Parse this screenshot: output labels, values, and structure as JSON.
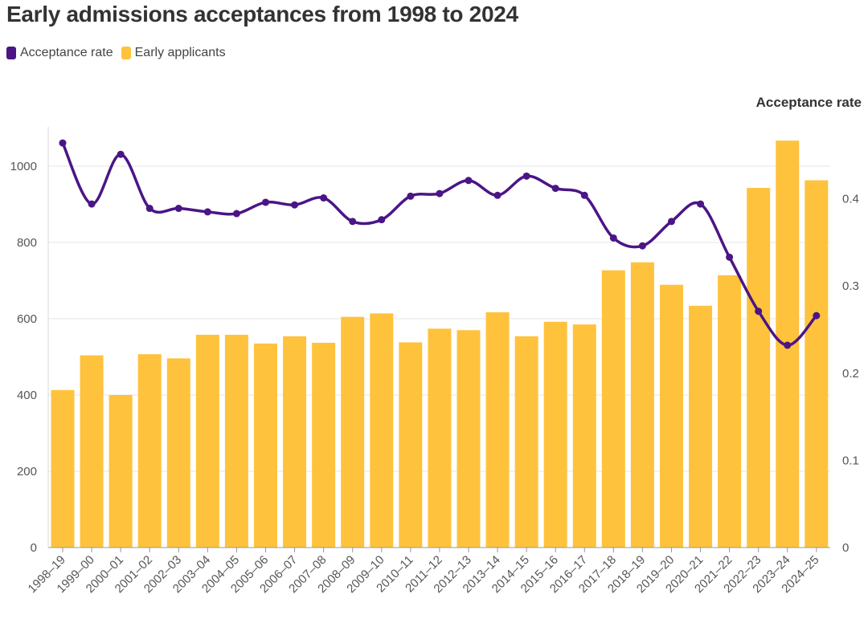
{
  "chart_data": {
    "type": "bar",
    "title": "Early admissions acceptances from 1998 to 2024",
    "categories": [
      "1998–19",
      "1999–00",
      "2000–01",
      "2001–02",
      "2002–03",
      "2003–04",
      "2004–05",
      "2005–06",
      "2006–07",
      "2007–08",
      "2008–09",
      "2009–10",
      "2010–11",
      "2011–12",
      "2012–13",
      "2013–14",
      "2014–15",
      "2015–16",
      "2016–17",
      "2017–18",
      "2018–19",
      "2019–20",
      "2020–21",
      "2021–22",
      "2022–23",
      "2023–24",
      "2024–25"
    ],
    "series": [
      {
        "name": "Early applicants",
        "type": "bar",
        "axis": "left",
        "color": "#FFC23C",
        "values": [
          413,
          504,
          400,
          507,
          496,
          558,
          558,
          535,
          554,
          537,
          605,
          614,
          538,
          574,
          570,
          617,
          554,
          592,
          585,
          727,
          748,
          689,
          634,
          714,
          943,
          1067,
          963
        ]
      },
      {
        "name": "Acceptance rate",
        "type": "line",
        "axis": "right",
        "color": "#4B1586",
        "values": [
          0.464,
          0.394,
          0.451,
          0.389,
          0.389,
          0.385,
          0.383,
          0.396,
          0.393,
          0.401,
          0.374,
          0.376,
          0.403,
          0.406,
          0.421,
          0.404,
          0.426,
          0.412,
          0.404,
          0.355,
          0.346,
          0.374,
          0.394,
          0.333,
          0.271,
          0.232,
          0.266
        ]
      }
    ],
    "left_axis": {
      "min": 0,
      "max": 1100,
      "ticks": [
        0,
        200,
        400,
        600,
        800,
        1000
      ],
      "tick_labels": [
        "0",
        "200",
        "400",
        "600",
        "800",
        "1000"
      ]
    },
    "right_axis": {
      "title": "Acceptance rate",
      "min": 0,
      "max": 0.4833,
      "ticks": [
        0,
        0.1,
        0.2,
        0.3,
        0.4
      ],
      "tick_labels": [
        "0",
        "0.1",
        "0.2",
        "0.3",
        "0.4"
      ]
    },
    "grid": true,
    "legend_position": "top-left"
  },
  "legend": {
    "items": [
      {
        "label": "Acceptance rate",
        "color": "#4B1586"
      },
      {
        "label": "Early applicants",
        "color": "#FFC23C"
      }
    ]
  }
}
